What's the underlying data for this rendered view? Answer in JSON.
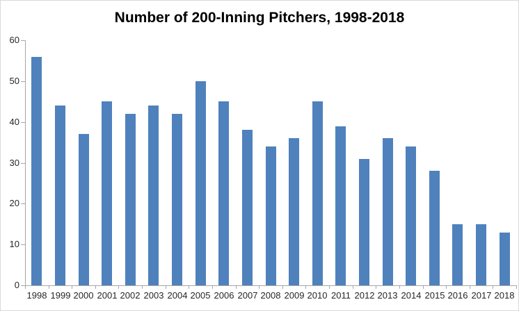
{
  "title": "Number of 200-Inning Pitchers, 1998-2018",
  "colors": {
    "bar": "#4F81BD",
    "axis": "#A6A6A6",
    "tick_text": "#262626",
    "title_text": "#000000",
    "frame_border": "#D9D9D9",
    "background": "#FFFFFF"
  },
  "chart_data": {
    "type": "bar",
    "title": "Number of 200-Inning Pitchers, 1998-2018",
    "categories": [
      "1998",
      "1999",
      "2000",
      "2001",
      "2002",
      "2003",
      "2004",
      "2005",
      "2006",
      "2007",
      "2008",
      "2009",
      "2010",
      "2011",
      "2012",
      "2013",
      "2014",
      "2015",
      "2016",
      "2017",
      "2018"
    ],
    "values": [
      56,
      44,
      37,
      45,
      42,
      44,
      42,
      50,
      45,
      38,
      34,
      36,
      45,
      39,
      31,
      36,
      34,
      28,
      15,
      15,
      13
    ],
    "xlabel": "",
    "ylabel": "",
    "ylim": [
      0,
      60
    ],
    "yticks": [
      0,
      10,
      20,
      30,
      40,
      50,
      60
    ],
    "grid": false,
    "legend": false
  }
}
